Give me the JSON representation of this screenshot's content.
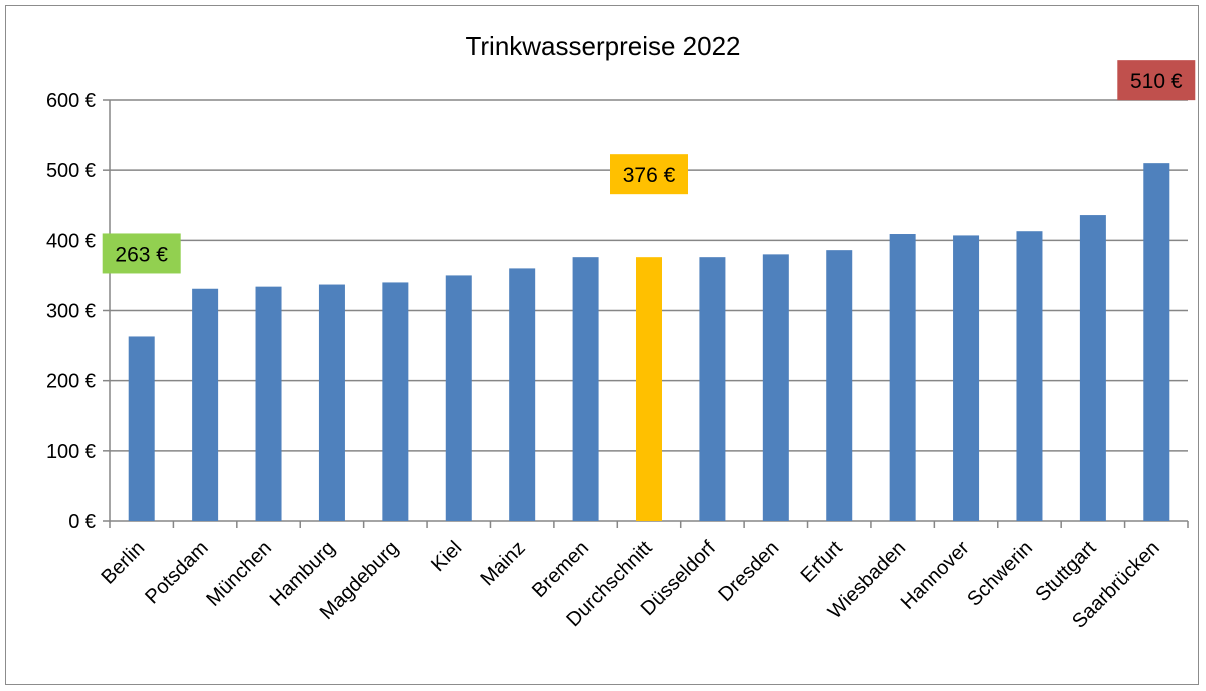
{
  "chart_data": {
    "type": "bar",
    "title": "Trinkwasserpreise 2022",
    "xlabel": "",
    "ylabel": "",
    "ylim": [
      0,
      600
    ],
    "yticks": [
      0,
      100,
      200,
      300,
      400,
      500,
      600
    ],
    "ytick_labels": [
      "0 €",
      "100 €",
      "200 €",
      "300 €",
      "400 €",
      "500 €",
      "600 €"
    ],
    "grid": true,
    "legend": "none",
    "categories": [
      "Berlin",
      "Potsdam",
      "München",
      "Hamburg",
      "Magdeburg",
      "Kiel",
      "Mainz",
      "Bremen",
      "Durchschnitt",
      "Düsseldorf",
      "Dresden",
      "Erfurt",
      "Wiesbaden",
      "Hannover",
      "Schwerin",
      "Stuttgart",
      "Saarbrücken"
    ],
    "values": [
      263,
      331,
      334,
      337,
      340,
      350,
      360,
      376,
      376,
      376,
      380,
      386,
      409,
      407,
      413,
      436,
      510
    ],
    "bar_colors": [
      "#4f81bd",
      "#4f81bd",
      "#4f81bd",
      "#4f81bd",
      "#4f81bd",
      "#4f81bd",
      "#4f81bd",
      "#4f81bd",
      "#ffc000",
      "#4f81bd",
      "#4f81bd",
      "#4f81bd",
      "#4f81bd",
      "#4f81bd",
      "#4f81bd",
      "#4f81bd",
      "#4f81bd"
    ],
    "annotations": [
      {
        "category": "Berlin",
        "label": "263 €",
        "color": "#92d050"
      },
      {
        "category": "Durchschnitt",
        "label": "376 €",
        "color": "#ffc000"
      },
      {
        "category": "Saarbrücken",
        "label": "510 €",
        "color": "#c0504d"
      }
    ]
  }
}
